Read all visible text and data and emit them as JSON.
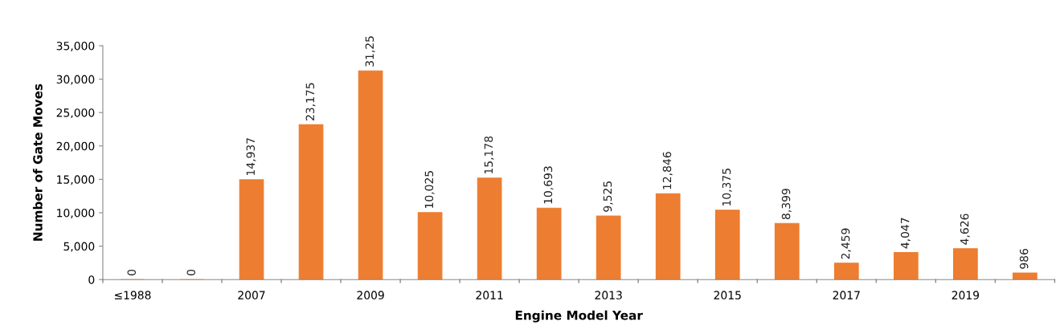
{
  "chart_data": {
    "type": "bar",
    "xlabel": "Engine Model Year",
    "ylabel": "Number of Gate Moves",
    "categories": [
      "≤1988",
      null,
      "2007",
      null,
      "2009",
      null,
      "2011",
      null,
      "2013",
      null,
      "2015",
      null,
      "2017",
      null,
      "2019",
      null
    ],
    "values": [
      0,
      0,
      14937,
      23175,
      31250,
      10025,
      15178,
      10693,
      9525,
      12846,
      10375,
      8399,
      2459,
      4047,
      4626,
      986
    ],
    "value_labels": [
      "0",
      "0",
      "14,937",
      "23,175",
      null,
      "10,025",
      "15,178",
      "10,693",
      "9,525",
      "12,846",
      "10,375",
      "8,399",
      "2,459",
      "4,047",
      "4,626",
      "986"
    ],
    "color": "#ed7d31",
    "annotations": [
      {
        "text": "31,25",
        "x": "2009",
        "y": 31250
      }
    ],
    "ylim": [
      0,
      35000
    ],
    "yticks": [
      {
        "value": 0,
        "label": "0"
      },
      {
        "value": 5000,
        "label": "5,000"
      },
      {
        "value": 10000,
        "label": "10,000"
      },
      {
        "value": 15000,
        "label": "15,000"
      },
      {
        "value": 20000,
        "label": "20,000"
      },
      {
        "value": 25000,
        "label": "25,000"
      },
      {
        "value": 30000,
        "label": "30,000"
      },
      {
        "value": 35000,
        "label": "35,000"
      }
    ],
    "grid": false,
    "legend": false
  }
}
